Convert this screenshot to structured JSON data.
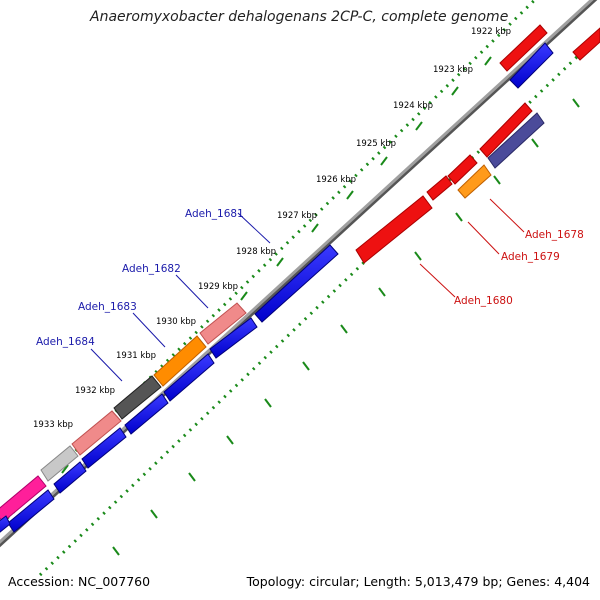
{
  "title": "Anaeromyxobacter dehalogenans 2CP-C, complete genome",
  "footer": {
    "accession": "Accession: NC_007760",
    "summary": "Topology: circular; Length: 5,013,479 bp; Genes: 4,404"
  },
  "colors": {
    "backbone": "#8a8a8a",
    "scale_ticks": "#1a8a1a",
    "forward_label": "#1a1aaa",
    "reverse_label": "#cc1111"
  },
  "scale_labels": [
    "1922 kbp",
    "1923 kbp",
    "1924 kbp",
    "1925 kbp",
    "1926 kbp",
    "1927 kbp",
    "1928 kbp",
    "1929 kbp",
    "1930 kbp",
    "1931 kbp",
    "1932 kbp",
    "1933 kbp"
  ],
  "gene_labels": {
    "forward": [
      "Adeh_1681",
      "Adeh_1682",
      "Adeh_1683",
      "Adeh_1684"
    ],
    "reverse": [
      "Adeh_1678",
      "Adeh_1679",
      "Adeh_1680"
    ]
  }
}
